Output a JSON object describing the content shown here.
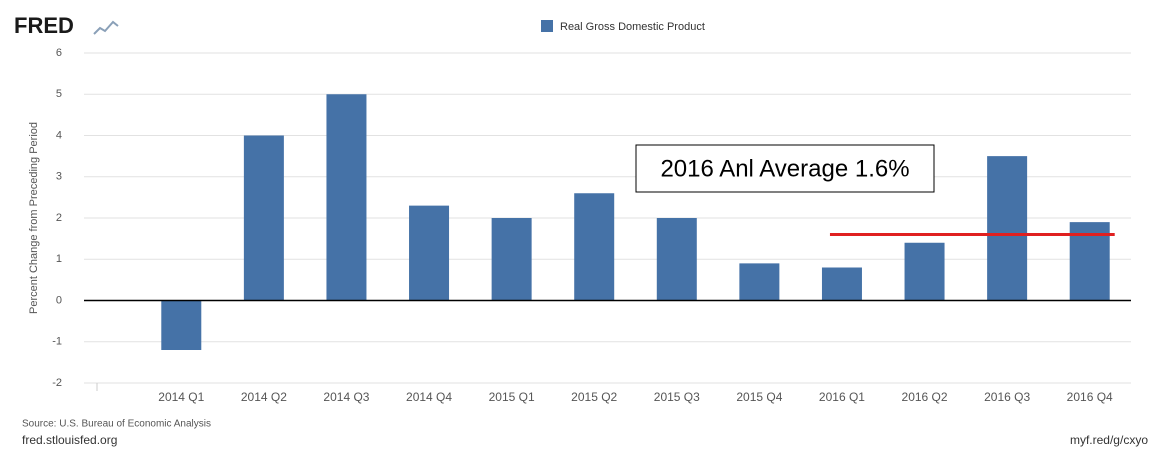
{
  "chart_data": {
    "type": "bar",
    "logo": "FRED",
    "y_label": "Percent Change from Preceding Period",
    "categories": [
      "2014 Q1",
      "2014 Q2",
      "2014 Q3",
      "2014 Q4",
      "2015 Q1",
      "2015 Q2",
      "2015 Q3",
      "2015 Q4",
      "2016 Q1",
      "2016 Q2",
      "2016 Q3",
      "2016 Q4"
    ],
    "series": [
      {
        "name": "Real Gross Domestic Product",
        "color": "#4572a7",
        "values": [
          -1.2,
          4.0,
          5.0,
          2.3,
          2.0,
          2.6,
          2.0,
          0.9,
          0.8,
          1.4,
          3.5,
          1.9
        ]
      }
    ],
    "ylim": [
      -2,
      6
    ],
    "yticks": [
      -2,
      -1,
      0,
      1,
      2,
      3,
      4,
      5,
      6
    ],
    "grid": true,
    "annotation": "2016 Anl Average 1.6%",
    "average_line": {
      "value": 1.6,
      "color": "#e02020"
    },
    "source": "Source: U.S. Bureau of Economic Analysis",
    "site": "fred.stlouisfed.org",
    "short_url": "myf.red/g/cxyo"
  }
}
